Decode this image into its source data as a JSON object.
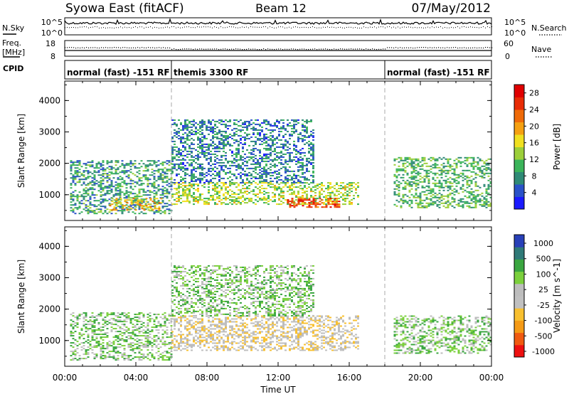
{
  "header": {
    "station": "Syowa East (fitACF)",
    "beam": "Beam 12",
    "date": "07/May/2012"
  },
  "top_panels": {
    "nsky_label": "N.Sky",
    "nsearch_label": "N.Search",
    "nsky_ticks": [
      "10^5",
      "10^0"
    ],
    "nsearch_ticks": [
      "10^5",
      "10^0"
    ],
    "freq_label_1": "Freq.",
    "freq_label_2": "[MHz]",
    "freq_ticks": [
      "18",
      "8"
    ],
    "nave_label": "Nave",
    "nave_ticks": [
      "60",
      "0"
    ],
    "cpid_label": "CPID",
    "cpid_segments": [
      {
        "label": "normal (fast) -151 RF",
        "start_h": 0,
        "end_h": 6
      },
      {
        "label": "themis 3300 RF",
        "start_h": 6,
        "end_h": 18
      },
      {
        "label": "normal (fast) -151 RF",
        "start_h": 18,
        "end_h": 24
      }
    ]
  },
  "colors": {
    "power_scale": [
      "#1a1aff",
      "#2a52c8",
      "#2f8a76",
      "#3bb45a",
      "#9ccf3a",
      "#f0e020",
      "#f5a011",
      "#ef6a08",
      "#e82c05",
      "#e00000"
    ],
    "velocity_scale": [
      "#ee1010",
      "#f05a10",
      "#f59a15",
      "#f8c030",
      "#c0c0c0",
      "#bdbdbd",
      "#7bd03c",
      "#3aa640",
      "#2f7a78",
      "#2840b8"
    ]
  },
  "chart_data": [
    {
      "type": "heatmap",
      "panel": "power",
      "xlabel": "",
      "ylabel": "Slant Range [km]",
      "xlim_hours": [
        0,
        24
      ],
      "ylim_km": [
        180,
        4620
      ],
      "y_ticks": [
        "1000",
        "2000",
        "3000",
        "4000"
      ],
      "x_tick_hours": [
        0,
        4,
        8,
        12,
        16,
        20,
        24
      ],
      "colorbar_label": "Power [dB]",
      "colorbar_ticks": [
        "4",
        "8",
        "12",
        "16",
        "20",
        "24",
        "28"
      ],
      "colorbar_range": [
        0,
        30
      ],
      "echo_regions": [
        {
          "t0": 0.3,
          "t1": 6.0,
          "r0": 400,
          "r1": 2100,
          "value": 8
        },
        {
          "t0": 2.5,
          "t1": 5.5,
          "r0": 500,
          "r1": 900,
          "value": 18
        },
        {
          "t0": 6.0,
          "t1": 16.5,
          "r0": 700,
          "r1": 1400,
          "value": 14
        },
        {
          "t0": 6.0,
          "t1": 14.0,
          "r0": 1400,
          "r1": 3400,
          "value": 6
        },
        {
          "t0": 12.5,
          "t1": 15.5,
          "r0": 600,
          "r1": 900,
          "value": 26
        },
        {
          "t0": 18.5,
          "t1": 24.0,
          "r0": 600,
          "r1": 2200,
          "value": 10
        }
      ]
    },
    {
      "type": "heatmap",
      "panel": "velocity",
      "xlabel": "Time UT",
      "ylabel": "Slant Range [km]",
      "xlim_hours": [
        0,
        24
      ],
      "ylim_km": [
        180,
        4620
      ],
      "y_ticks": [
        "1000",
        "2000",
        "3000",
        "4000"
      ],
      "x_tick_labels": [
        "00:00",
        "04:00",
        "08:00",
        "12:00",
        "16:00",
        "20:00",
        "00:00"
      ],
      "x_tick_hours": [
        0,
        4,
        8,
        12,
        16,
        20,
        24
      ],
      "colorbar_label": "Velocity [m s^-1]",
      "colorbar_ticks": [
        "1000",
        "500",
        "100",
        "25",
        "-25",
        "-100",
        "-500",
        "-1000"
      ],
      "echo_regions": [
        {
          "t0": 0.3,
          "t1": 6.0,
          "r0": 400,
          "r1": 1900,
          "value": 100
        },
        {
          "t0": 6.0,
          "t1": 16.5,
          "r0": 700,
          "r1": 1800,
          "value": 0
        },
        {
          "t0": 6.0,
          "t1": 14.0,
          "r0": 1800,
          "r1": 3400,
          "value": 300
        },
        {
          "t0": 18.5,
          "t1": 24.0,
          "r0": 600,
          "r1": 1800,
          "value": 200
        }
      ]
    }
  ]
}
